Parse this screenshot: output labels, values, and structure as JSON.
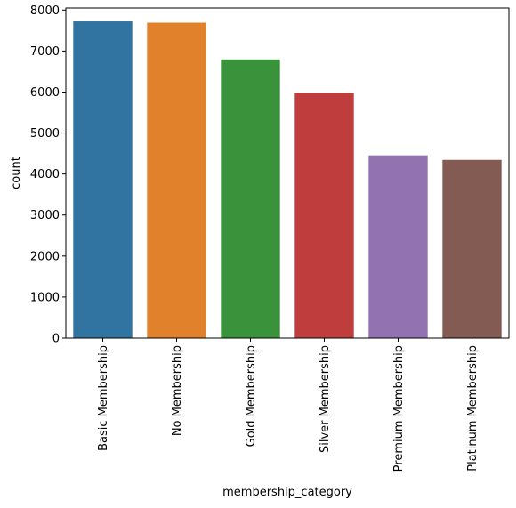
{
  "chart_data": {
    "type": "bar",
    "xlabel": "membership_category",
    "ylabel": "count",
    "categories": [
      "Basic Membership",
      "No Membership",
      "Gold Membership",
      "Silver Membership",
      "Premium Membership",
      "Platinum Membership"
    ],
    "values": [
      7724,
      7692,
      6795,
      5985,
      4455,
      4345
    ],
    "colors": [
      "#3274a1",
      "#e1812c",
      "#3a923a",
      "#c03d3e",
      "#9372b2",
      "#845b53"
    ],
    "ylim": [
      0,
      8050
    ],
    "yticks": [
      0,
      1000,
      2000,
      3000,
      4000,
      5000,
      6000,
      7000,
      8000
    ],
    "grid": false,
    "legend": "none"
  }
}
